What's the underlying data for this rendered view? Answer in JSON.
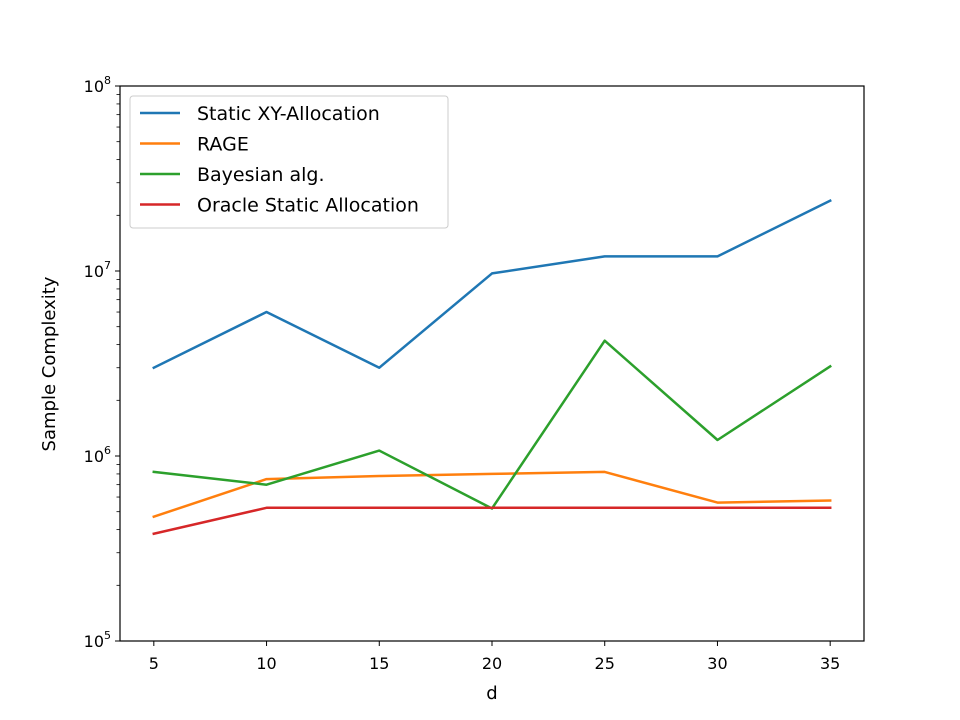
{
  "chart_data": {
    "type": "line",
    "title": "",
    "xlabel": "d",
    "ylabel": "Sample Complexity",
    "yscale": "log",
    "xlim": [
      3.5,
      36.5
    ],
    "ylim": [
      100000,
      100000000
    ],
    "x": [
      5,
      10,
      15,
      20,
      25,
      30,
      35
    ],
    "x_tick_labels": [
      "5",
      "10",
      "15",
      "20",
      "25",
      "30",
      "35"
    ],
    "y_ticks": [
      {
        "value": 100000,
        "base": "10",
        "exp": "5"
      },
      {
        "value": 1000000,
        "base": "10",
        "exp": "6"
      },
      {
        "value": 10000000,
        "base": "10",
        "exp": "7"
      },
      {
        "value": 100000000,
        "base": "10",
        "exp": "8"
      }
    ],
    "grid": false,
    "legend_position": "top-left",
    "series": [
      {
        "name": "Static XY-Allocation",
        "color": "#1f77b4",
        "values": [
          3000000,
          6000000,
          3000000,
          9700000,
          12000000,
          12000000,
          24000000
        ]
      },
      {
        "name": "RAGE",
        "color": "#ff7f0e",
        "values": [
          470000,
          750000,
          780000,
          800000,
          820000,
          560000,
          575000
        ]
      },
      {
        "name": "Bayesian alg.",
        "color": "#2ca02c",
        "values": [
          820000,
          700000,
          1070000,
          520000,
          4200000,
          1220000,
          3050000
        ]
      },
      {
        "name": "Oracle Static Allocation",
        "color": "#d62728",
        "values": [
          380000,
          525000,
          525000,
          525000,
          525000,
          525000,
          525000
        ]
      }
    ]
  }
}
